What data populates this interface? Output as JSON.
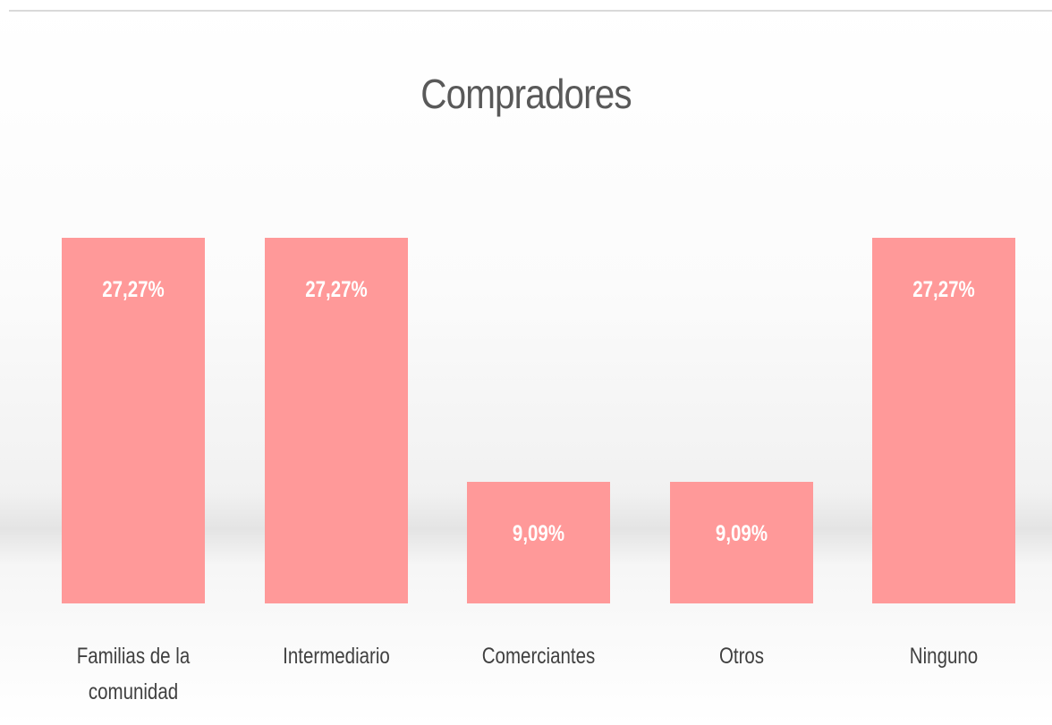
{
  "chart_data": {
    "type": "bar",
    "title": "Compradores",
    "categories": [
      "Familias de la comunidad",
      "Intermediario",
      "Comerciantes",
      "Otros",
      "Ninguno"
    ],
    "values": [
      27.27,
      27.27,
      9.09,
      9.09,
      27.27
    ],
    "value_labels": [
      "27,27%",
      "27,27%",
      "9,09%",
      "9,09%",
      "27,27%"
    ],
    "color": "#ff9999"
  }
}
